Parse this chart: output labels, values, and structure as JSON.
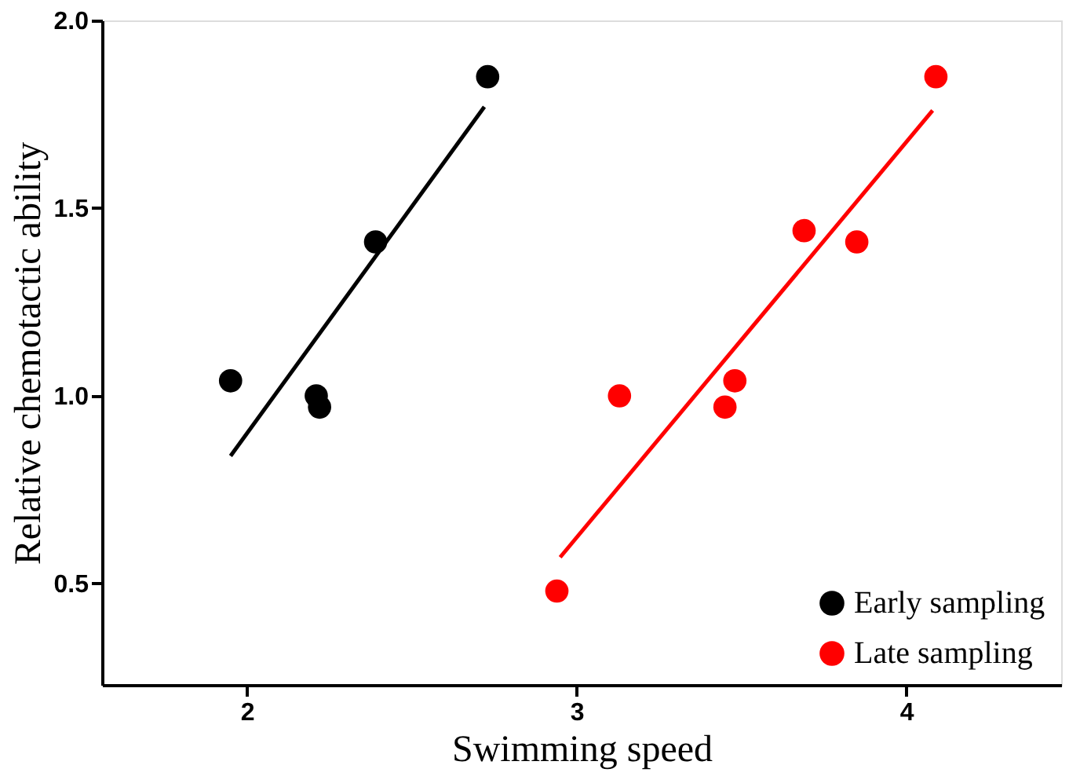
{
  "chart_data": {
    "type": "scatter",
    "xlabel": "Swimming speed",
    "ylabel": "Relative chemotactic ability",
    "xlim": [
      1.56,
      4.47
    ],
    "xticks": [
      2,
      3,
      4
    ],
    "ylim": [
      0.23,
      2.0
    ],
    "yticks": [
      {
        "value": 0.5,
        "label": "0.5"
      },
      {
        "value": 1.0,
        "label": "1.0"
      },
      {
        "value": 1.5,
        "label": "1.5"
      },
      {
        "value": 2.0,
        "label": "2.0"
      }
    ],
    "grid": false,
    "legend": "bottom right",
    "marker": "circle",
    "series": [
      {
        "name": "Early sampling",
        "color": "#000000",
        "x": [
          1.95,
          2.21,
          2.22,
          2.39,
          2.73
        ],
        "values": [
          1.04,
          1.0,
          0.97,
          1.41,
          1.85
        ]
      },
      {
        "name": "Late sampling",
        "color": "#ff0000",
        "x": [
          2.94,
          3.13,
          3.45,
          3.48,
          3.69,
          3.85,
          4.09
        ],
        "values": [
          0.48,
          1.0,
          0.97,
          1.04,
          1.44,
          1.41,
          1.85
        ]
      },
      {
        "type": "line",
        "marker": "none",
        "color": "#000000",
        "x": [
          1.95,
          2.72
        ],
        "values": [
          0.84,
          1.77
        ]
      },
      {
        "type": "line",
        "marker": "none",
        "color": "#ff0000",
        "x": [
          2.95,
          4.08
        ],
        "values": [
          0.57,
          1.76
        ]
      }
    ]
  }
}
